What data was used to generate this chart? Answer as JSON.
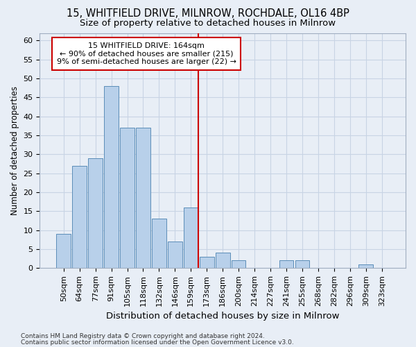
{
  "title1": "15, WHITFIELD DRIVE, MILNROW, ROCHDALE, OL16 4BP",
  "title2": "Size of property relative to detached houses in Milnrow",
  "xlabel": "Distribution of detached houses by size in Milnrow",
  "ylabel": "Number of detached properties",
  "categories": [
    "50sqm",
    "64sqm",
    "77sqm",
    "91sqm",
    "105sqm",
    "118sqm",
    "132sqm",
    "146sqm",
    "159sqm",
    "173sqm",
    "186sqm",
    "200sqm",
    "214sqm",
    "227sqm",
    "241sqm",
    "255sqm",
    "268sqm",
    "282sqm",
    "296sqm",
    "309sqm",
    "323sqm"
  ],
  "values": [
    9,
    27,
    29,
    48,
    37,
    37,
    13,
    7,
    16,
    3,
    4,
    2,
    0,
    0,
    2,
    2,
    0,
    0,
    0,
    1,
    0
  ],
  "bar_color": "#b8d0ea",
  "bar_edge_color": "#5b8db8",
  "grid_color": "#c8d4e4",
  "background_color": "#e8eef6",
  "vline_x_index": 8,
  "vline_color": "#cc0000",
  "ann_line1": "15 WHITFIELD DRIVE: 164sqm",
  "ann_line2": "← 90% of detached houses are smaller (215)",
  "ann_line3": "9% of semi-detached houses are larger (22) →",
  "annotation_box_color": "#ffffff",
  "annotation_box_edge": "#cc0000",
  "ylim": [
    0,
    62
  ],
  "yticks": [
    0,
    5,
    10,
    15,
    20,
    25,
    30,
    35,
    40,
    45,
    50,
    55,
    60
  ],
  "footer1": "Contains HM Land Registry data © Crown copyright and database right 2024.",
  "footer2": "Contains public sector information licensed under the Open Government Licence v3.0.",
  "title1_fontsize": 10.5,
  "title2_fontsize": 9.5,
  "xlabel_fontsize": 9.5,
  "ylabel_fontsize": 8.5,
  "tick_fontsize": 8,
  "annotation_fontsize": 8,
  "footer_fontsize": 6.5
}
